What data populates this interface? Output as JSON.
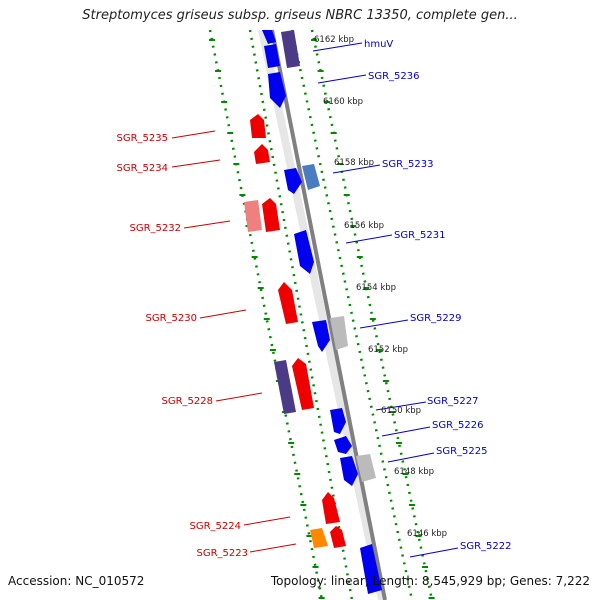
{
  "title": "Streptomyces griseus subsp. griseus NBRC 13350, complete gen...",
  "footer": {
    "accession": "Accession: NC_010572",
    "summary": "Topology: linear; Length: 8,545,929 bp; Genes: 7,222"
  },
  "colors": {
    "forward": "#0000ee",
    "reverse": "#ee0000",
    "backbone": "#808080",
    "ruler": "#008800"
  },
  "genes": [
    {
      "label": "hmuV",
      "strand": "forward",
      "color": "#4b3a86"
    },
    {
      "label": "SGR_5236",
      "strand": "forward",
      "color": "#1010ee"
    },
    {
      "label": "SGR_5235",
      "strand": "reverse",
      "color": "#ee1010"
    },
    {
      "label": "SGR_5234",
      "strand": "reverse",
      "color": "#ee1010"
    },
    {
      "label": "SGR_5233",
      "strand": "forward",
      "color": "#4a7cc0"
    },
    {
      "label": "SGR_5232",
      "strand": "reverse",
      "color": "#ee1010"
    },
    {
      "label": "SGR_5231",
      "strand": "forward",
      "color": "#1010ee"
    },
    {
      "label": "SGR_5230",
      "strand": "reverse",
      "color": "#ee1010"
    },
    {
      "label": "SGR_5229",
      "strand": "forward",
      "color": "#bbbbbb"
    },
    {
      "label": "SGR_5228",
      "strand": "reverse",
      "color": "#4b3a86"
    },
    {
      "label": "SGR_5227",
      "strand": "forward",
      "color": "#1010ee"
    },
    {
      "label": "SGR_5226",
      "strand": "forward",
      "color": "#1010ee"
    },
    {
      "label": "SGR_5225",
      "strand": "forward",
      "color": "#bbbbbb"
    },
    {
      "label": "SGR_5224",
      "strand": "reverse",
      "color": "#ee1010"
    },
    {
      "label": "SGR_5223",
      "strand": "reverse",
      "color": "#ff8800"
    },
    {
      "label": "SGR_5222",
      "strand": "forward",
      "color": "#1010ee"
    }
  ],
  "ruler": [
    "6162 kbp",
    "6160 kbp",
    "6158 kbp",
    "6156 kbp",
    "6154 kbp",
    "6152 kbp",
    "6150 kbp",
    "6148 kbp",
    "6146 kbp"
  ]
}
